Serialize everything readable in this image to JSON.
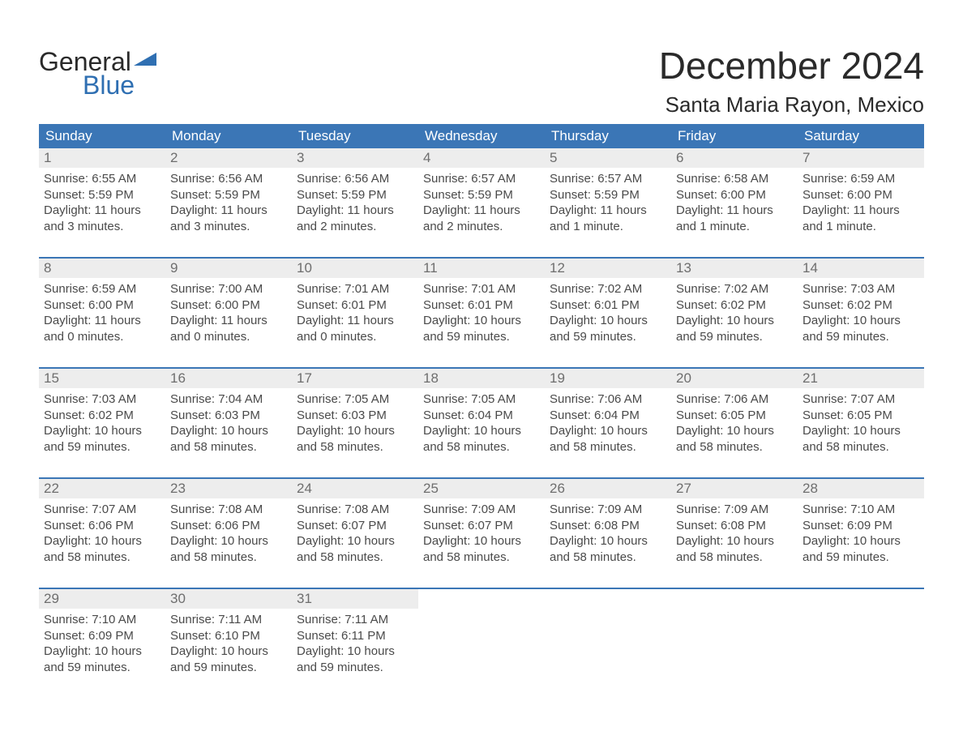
{
  "brand": {
    "word1": "General",
    "word2": "Blue",
    "flag_color": "#2f6fb2"
  },
  "title": "December 2024",
  "location": "Santa Maria Rayon, Mexico",
  "colors": {
    "header_bg": "#3b76b6",
    "header_text": "#ffffff",
    "daynum_bg": "#ededed",
    "daynum_text": "#6e6e6e",
    "body_text": "#4a4a4a",
    "rule": "#3b76b6",
    "page_bg": "#ffffff"
  },
  "typography": {
    "title_fontsize": 46,
    "location_fontsize": 26,
    "header_fontsize": 17,
    "daynum_fontsize": 17,
    "cell_fontsize": 15
  },
  "weekday_labels": [
    "Sunday",
    "Monday",
    "Tuesday",
    "Wednesday",
    "Thursday",
    "Friday",
    "Saturday"
  ],
  "weeks": [
    [
      {
        "day": 1,
        "sunrise": "6:55 AM",
        "sunset": "5:59 PM",
        "daylight": "11 hours and 3 minutes."
      },
      {
        "day": 2,
        "sunrise": "6:56 AM",
        "sunset": "5:59 PM",
        "daylight": "11 hours and 3 minutes."
      },
      {
        "day": 3,
        "sunrise": "6:56 AM",
        "sunset": "5:59 PM",
        "daylight": "11 hours and 2 minutes."
      },
      {
        "day": 4,
        "sunrise": "6:57 AM",
        "sunset": "5:59 PM",
        "daylight": "11 hours and 2 minutes."
      },
      {
        "day": 5,
        "sunrise": "6:57 AM",
        "sunset": "5:59 PM",
        "daylight": "11 hours and 1 minute."
      },
      {
        "day": 6,
        "sunrise": "6:58 AM",
        "sunset": "6:00 PM",
        "daylight": "11 hours and 1 minute."
      },
      {
        "day": 7,
        "sunrise": "6:59 AM",
        "sunset": "6:00 PM",
        "daylight": "11 hours and 1 minute."
      }
    ],
    [
      {
        "day": 8,
        "sunrise": "6:59 AM",
        "sunset": "6:00 PM",
        "daylight": "11 hours and 0 minutes."
      },
      {
        "day": 9,
        "sunrise": "7:00 AM",
        "sunset": "6:00 PM",
        "daylight": "11 hours and 0 minutes."
      },
      {
        "day": 10,
        "sunrise": "7:01 AM",
        "sunset": "6:01 PM",
        "daylight": "11 hours and 0 minutes."
      },
      {
        "day": 11,
        "sunrise": "7:01 AM",
        "sunset": "6:01 PM",
        "daylight": "10 hours and 59 minutes."
      },
      {
        "day": 12,
        "sunrise": "7:02 AM",
        "sunset": "6:01 PM",
        "daylight": "10 hours and 59 minutes."
      },
      {
        "day": 13,
        "sunrise": "7:02 AM",
        "sunset": "6:02 PM",
        "daylight": "10 hours and 59 minutes."
      },
      {
        "day": 14,
        "sunrise": "7:03 AM",
        "sunset": "6:02 PM",
        "daylight": "10 hours and 59 minutes."
      }
    ],
    [
      {
        "day": 15,
        "sunrise": "7:03 AM",
        "sunset": "6:02 PM",
        "daylight": "10 hours and 59 minutes."
      },
      {
        "day": 16,
        "sunrise": "7:04 AM",
        "sunset": "6:03 PM",
        "daylight": "10 hours and 58 minutes."
      },
      {
        "day": 17,
        "sunrise": "7:05 AM",
        "sunset": "6:03 PM",
        "daylight": "10 hours and 58 minutes."
      },
      {
        "day": 18,
        "sunrise": "7:05 AM",
        "sunset": "6:04 PM",
        "daylight": "10 hours and 58 minutes."
      },
      {
        "day": 19,
        "sunrise": "7:06 AM",
        "sunset": "6:04 PM",
        "daylight": "10 hours and 58 minutes."
      },
      {
        "day": 20,
        "sunrise": "7:06 AM",
        "sunset": "6:05 PM",
        "daylight": "10 hours and 58 minutes."
      },
      {
        "day": 21,
        "sunrise": "7:07 AM",
        "sunset": "6:05 PM",
        "daylight": "10 hours and 58 minutes."
      }
    ],
    [
      {
        "day": 22,
        "sunrise": "7:07 AM",
        "sunset": "6:06 PM",
        "daylight": "10 hours and 58 minutes."
      },
      {
        "day": 23,
        "sunrise": "7:08 AM",
        "sunset": "6:06 PM",
        "daylight": "10 hours and 58 minutes."
      },
      {
        "day": 24,
        "sunrise": "7:08 AM",
        "sunset": "6:07 PM",
        "daylight": "10 hours and 58 minutes."
      },
      {
        "day": 25,
        "sunrise": "7:09 AM",
        "sunset": "6:07 PM",
        "daylight": "10 hours and 58 minutes."
      },
      {
        "day": 26,
        "sunrise": "7:09 AM",
        "sunset": "6:08 PM",
        "daylight": "10 hours and 58 minutes."
      },
      {
        "day": 27,
        "sunrise": "7:09 AM",
        "sunset": "6:08 PM",
        "daylight": "10 hours and 58 minutes."
      },
      {
        "day": 28,
        "sunrise": "7:10 AM",
        "sunset": "6:09 PM",
        "daylight": "10 hours and 59 minutes."
      }
    ],
    [
      {
        "day": 29,
        "sunrise": "7:10 AM",
        "sunset": "6:09 PM",
        "daylight": "10 hours and 59 minutes."
      },
      {
        "day": 30,
        "sunrise": "7:11 AM",
        "sunset": "6:10 PM",
        "daylight": "10 hours and 59 minutes."
      },
      {
        "day": 31,
        "sunrise": "7:11 AM",
        "sunset": "6:11 PM",
        "daylight": "10 hours and 59 minutes."
      },
      null,
      null,
      null,
      null
    ]
  ],
  "labels": {
    "sunrise_prefix": "Sunrise: ",
    "sunset_prefix": "Sunset: ",
    "daylight_prefix": "Daylight: "
  }
}
